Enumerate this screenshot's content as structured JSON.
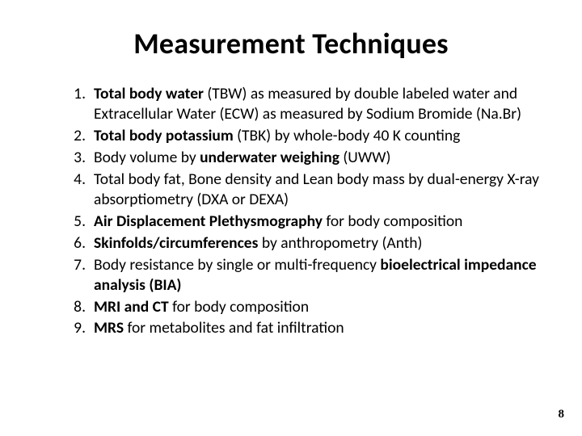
{
  "title": "Measurement Techniques",
  "items": [
    {
      "segs": [
        {
          "t": "Total body water",
          "b": true
        },
        {
          "t": " (TBW) as measured by double labeled water and Extracellular Water (ECW) as measured by Sodium Bromide (Na.Br)",
          "b": false
        }
      ]
    },
    {
      "segs": [
        {
          "t": "Total body potassium",
          "b": true
        },
        {
          "t": " (TBK) by whole-body 40 K counting",
          "b": false
        }
      ]
    },
    {
      "segs": [
        {
          "t": "Body volume by ",
          "b": false
        },
        {
          "t": "underwater weighing",
          "b": true
        },
        {
          "t": " (UWW)",
          "b": false
        }
      ]
    },
    {
      "segs": [
        {
          "t": "Total body fat, Bone density and Lean body mass by dual-energy X-ray absorptiometry (DXA or DEXA)",
          "b": false
        }
      ]
    },
    {
      "segs": [
        {
          "t": "Air Displacement Plethysmography",
          "b": true
        },
        {
          "t": " for body composition",
          "b": false
        }
      ]
    },
    {
      "segs": [
        {
          "t": "Skinfolds/circumferences",
          "b": true
        },
        {
          "t": " by anthropometry (Anth)",
          "b": false
        }
      ]
    },
    {
      "segs": [
        {
          "t": "Body resistance by single or multi-frequency ",
          "b": false
        },
        {
          "t": "bioelectrical impedance analysis (BIA)",
          "b": true
        }
      ]
    },
    {
      "segs": [
        {
          "t": "MRI and CT",
          "b": true
        },
        {
          "t": " for body composition",
          "b": false
        }
      ]
    },
    {
      "segs": [
        {
          "t": "MRS",
          "b": true
        },
        {
          "t": " for metabolites and fat infiltration",
          "b": false
        }
      ]
    }
  ],
  "page_number": "8",
  "style": {
    "background": "#ffffff",
    "text_color": "#000000",
    "title_fontsize": 36,
    "body_fontsize": 19.5,
    "title_weight": 700,
    "font_family": "Calibri"
  }
}
